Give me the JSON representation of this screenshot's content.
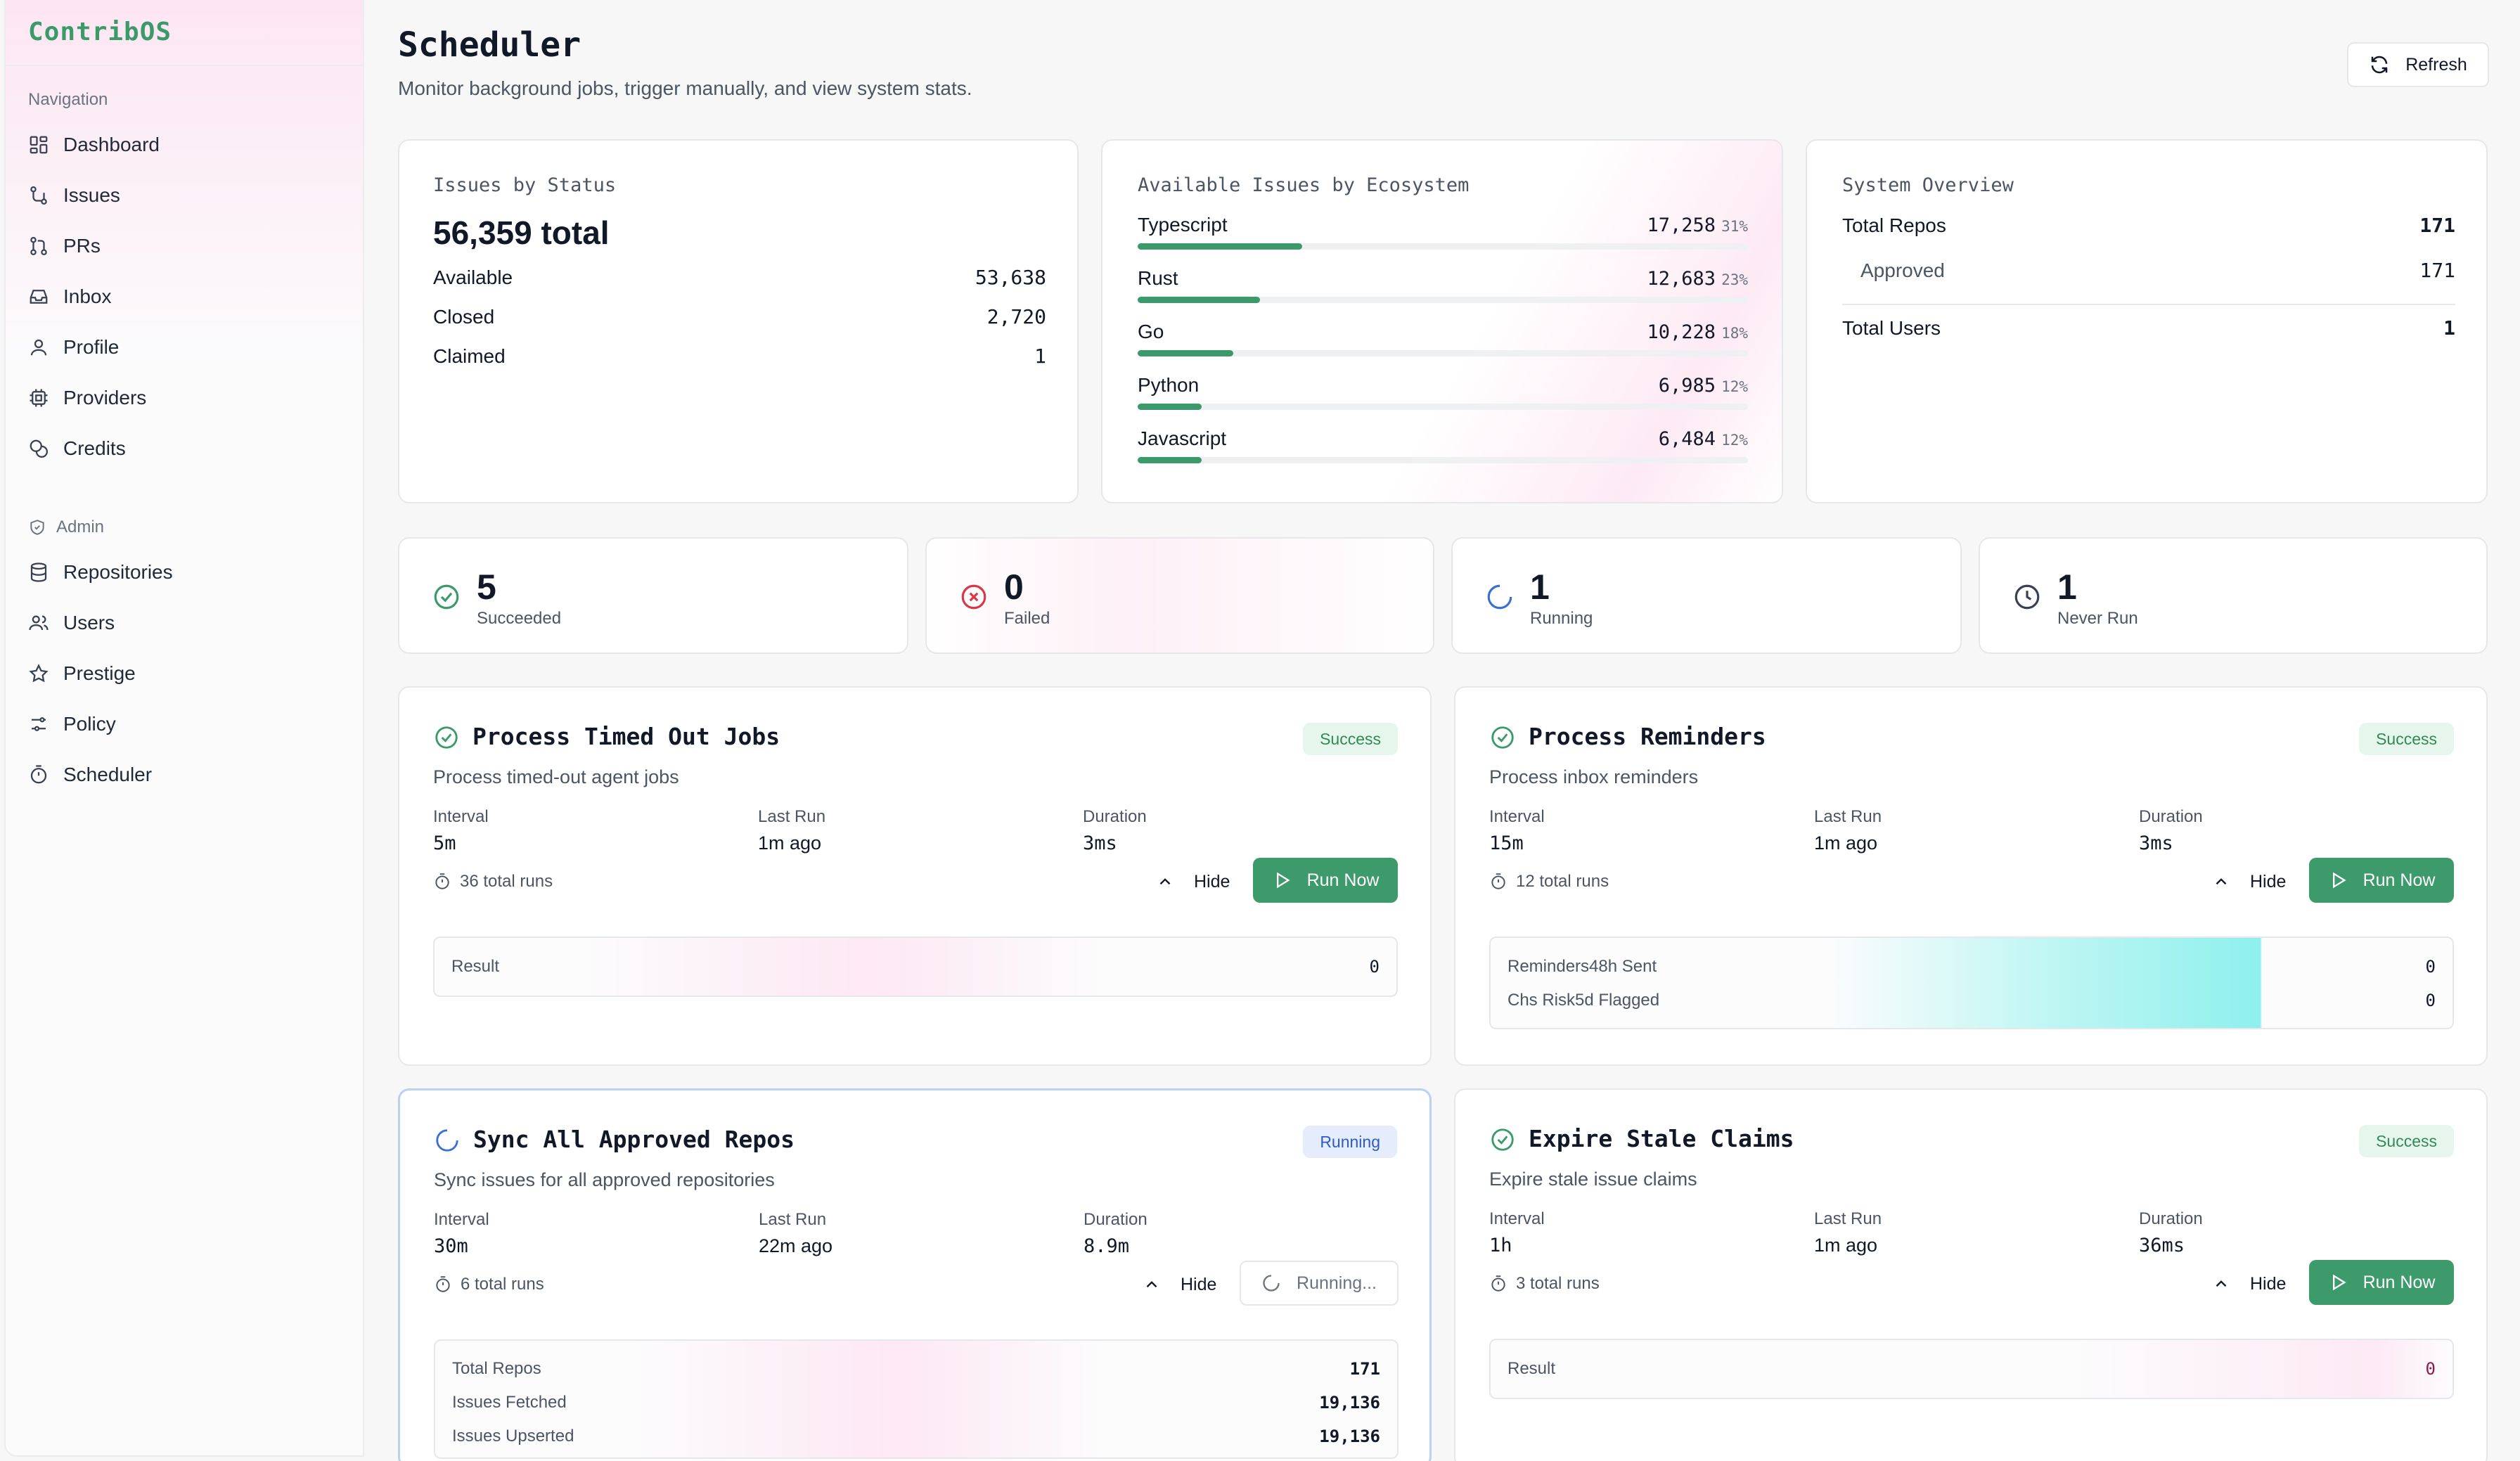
{
  "sidebar": {
    "brand": "ContribOS",
    "navigation_label": "Navigation",
    "items": [
      {
        "label": "Dashboard",
        "icon": "dashboard-icon"
      },
      {
        "label": "Issues",
        "icon": "issues-icon"
      },
      {
        "label": "PRs",
        "icon": "pull-request-icon"
      },
      {
        "label": "Inbox",
        "icon": "inbox-icon"
      },
      {
        "label": "Profile",
        "icon": "user-icon"
      },
      {
        "label": "Providers",
        "icon": "chip-icon"
      },
      {
        "label": "Credits",
        "icon": "coins-icon"
      }
    ],
    "admin_label": "Admin",
    "admin_items": [
      {
        "label": "Repositories",
        "icon": "database-icon"
      },
      {
        "label": "Users",
        "icon": "users-icon"
      },
      {
        "label": "Prestige",
        "icon": "star-icon"
      },
      {
        "label": "Policy",
        "icon": "sliders-icon"
      },
      {
        "label": "Scheduler",
        "icon": "timer-icon"
      }
    ]
  },
  "header": {
    "title": "Scheduler",
    "subtitle": "Monitor background jobs, trigger manually, and view system stats.",
    "refresh_label": "Refresh"
  },
  "issues_by_status": {
    "title": "Issues by Status",
    "total_label": "56,359 total",
    "rows": [
      {
        "label": "Available",
        "value": "53,638"
      },
      {
        "label": "Closed",
        "value": "2,720"
      },
      {
        "label": "Claimed",
        "value": "1"
      }
    ]
  },
  "ecosystem": {
    "title": "Available Issues by Ecosystem",
    "rows": [
      {
        "label": "Typescript",
        "value": "17,258",
        "pct": "31%",
        "fraction": 0.31
      },
      {
        "label": "Rust",
        "value": "12,683",
        "pct": "23%",
        "fraction": 0.23
      },
      {
        "label": "Go",
        "value": "10,228",
        "pct": "18%",
        "fraction": 0.18
      },
      {
        "label": "Python",
        "value": "6,985",
        "pct": "12%",
        "fraction": 0.12
      },
      {
        "label": "Javascript",
        "value": "6,484",
        "pct": "12%",
        "fraction": 0.12
      }
    ]
  },
  "system_overview": {
    "title": "System Overview",
    "total_repos_label": "Total Repos",
    "total_repos_value": "171",
    "approved_label": "Approved",
    "approved_value": "171",
    "total_users_label": "Total Users",
    "total_users_value": "1"
  },
  "stats": [
    {
      "value": "5",
      "label": "Succeeded",
      "icon": "check-circle-icon",
      "color": "#3a9a6a"
    },
    {
      "value": "0",
      "label": "Failed",
      "icon": "x-circle-icon",
      "color": "#dc3545"
    },
    {
      "value": "1",
      "label": "Running",
      "icon": "spinner-icon",
      "color": "#3b6fd4"
    },
    {
      "value": "1",
      "label": "Never Run",
      "icon": "clock-icon",
      "color": "#374151"
    }
  ],
  "labels": {
    "interval": "Interval",
    "last_run": "Last Run",
    "duration": "Duration",
    "hide": "Hide",
    "run_now": "Run Now",
    "running": "Running..."
  },
  "jobs": [
    {
      "title": "Process Timed Out Jobs",
      "description": "Process timed-out agent jobs",
      "status": "Success",
      "interval": "5m",
      "last_run": "1m ago",
      "duration": "3ms",
      "total_runs": "36 total runs",
      "results": [
        {
          "label": "Result",
          "value": "0"
        }
      ]
    },
    {
      "title": "Process Reminders",
      "description": "Process inbox reminders",
      "status": "Success",
      "interval": "15m",
      "last_run": "1m ago",
      "duration": "3ms",
      "total_runs": "12 total runs",
      "results": [
        {
          "label": "Reminders48h Sent",
          "value": "0"
        },
        {
          "label": "Chs Risk5d Flagged",
          "value": "0"
        }
      ]
    },
    {
      "title": "Sync All Approved Repos",
      "description": "Sync issues for all approved repositories",
      "status": "Running",
      "interval": "30m",
      "last_run": "22m ago",
      "duration": "8.9m",
      "total_runs": "6 total runs",
      "results": [
        {
          "label": "Total Repos",
          "value": "171"
        },
        {
          "label": "Issues Fetched",
          "value": "19,136"
        },
        {
          "label": "Issues Upserted",
          "value": "19,136"
        }
      ]
    },
    {
      "title": "Expire Stale Claims",
      "description": "Expire stale issue claims",
      "status": "Success",
      "interval": "1h",
      "last_run": "1m ago",
      "duration": "36ms",
      "total_runs": "3 total runs",
      "results": [
        {
          "label": "Result",
          "value": "0"
        }
      ]
    }
  ],
  "colors": {
    "accent": "#3a9a6a",
    "running_border": "#bcd0f2"
  }
}
